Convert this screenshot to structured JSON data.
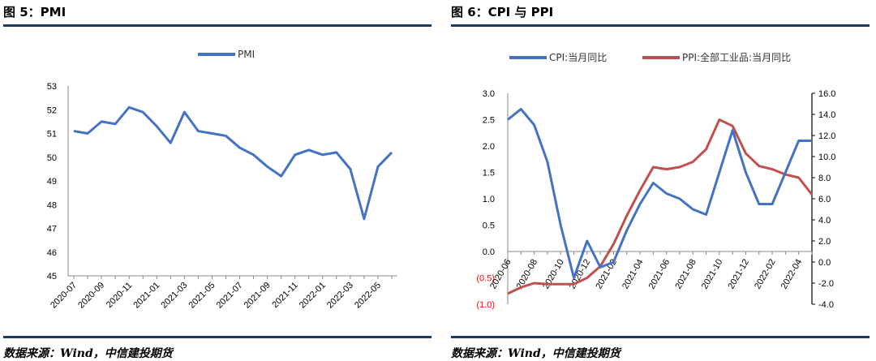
{
  "figures": {
    "left": {
      "title": "图 5：PMI",
      "source": "数据来源：Wind，中信建投期货"
    },
    "right": {
      "title": "图 6：CPI 与 PPI",
      "source": "数据来源：Wind，中信建投期货"
    }
  },
  "colors": {
    "blue": "#4472c4",
    "red": "#c0504d",
    "rule": "#1f3a66",
    "negative_label": "#ff0000"
  },
  "chart_data": [
    {
      "type": "line",
      "title": "",
      "xlabel": "",
      "ylabel": "",
      "ylim": [
        45,
        53
      ],
      "y_ticks": [
        "45",
        "46",
        "47",
        "48",
        "49",
        "50",
        "51",
        "52",
        "53"
      ],
      "x_tick_labels": [
        "2020-07",
        "2020-09",
        "2020-11",
        "2021-01",
        "2021-03",
        "2021-05",
        "2021-07",
        "2021-09",
        "2021-11",
        "2022-01",
        "2022-03",
        "2022-05"
      ],
      "x": [
        "2020-07",
        "2020-08",
        "2020-09",
        "2020-10",
        "2020-11",
        "2020-12",
        "2021-01",
        "2021-02",
        "2021-03",
        "2021-04",
        "2021-05",
        "2021-06",
        "2021-07",
        "2021-08",
        "2021-09",
        "2021-10",
        "2021-11",
        "2021-12",
        "2022-01",
        "2022-02",
        "2022-03",
        "2022-04",
        "2022-05",
        "2022-06"
      ],
      "series": [
        {
          "name": "PMI",
          "color": "#4472c4",
          "values": [
            51.1,
            51.0,
            51.5,
            51.4,
            52.1,
            51.9,
            51.3,
            50.6,
            51.9,
            51.1,
            51.0,
            50.9,
            50.4,
            50.1,
            49.6,
            49.2,
            50.1,
            50.3,
            50.1,
            50.2,
            49.5,
            47.4,
            49.6,
            50.2
          ]
        }
      ],
      "legend_position": "top-center",
      "grid": false
    },
    {
      "type": "line",
      "title": "",
      "xlabel": "",
      "ylabel": "",
      "ylim": [
        -1.0,
        3.0
      ],
      "y2lim": [
        -4.0,
        16.0
      ],
      "y_ticks": [
        "3.0",
        "2.5",
        "2.0",
        "1.5",
        "1.0",
        "0.5",
        "0.0",
        "(0.5)",
        "(1.0)"
      ],
      "y2_ticks": [
        "16.0",
        "14.0",
        "12.0",
        "10.0",
        "8.0",
        "6.0",
        "4.0",
        "2.0",
        "0.0",
        "-2.0",
        "-4.0"
      ],
      "x_tick_labels": [
        "2020-06",
        "2020-08",
        "2020-10",
        "2020-12",
        "2021-02",
        "2021-04",
        "2021-06",
        "2021-08",
        "2021-10",
        "2021-12",
        "2022-02",
        "2022-04"
      ],
      "x": [
        "2020-06",
        "2020-07",
        "2020-08",
        "2020-09",
        "2020-10",
        "2020-11",
        "2020-12",
        "2021-01",
        "2021-02",
        "2021-03",
        "2021-04",
        "2021-05",
        "2021-06",
        "2021-07",
        "2021-08",
        "2021-09",
        "2021-10",
        "2021-11",
        "2021-12",
        "2022-01",
        "2022-02",
        "2022-03",
        "2022-04",
        "2022-05"
      ],
      "series": [
        {
          "name": "CPI:当月同比",
          "axis": "left",
          "color": "#4472c4",
          "values": [
            2.5,
            2.7,
            2.4,
            1.7,
            0.5,
            -0.5,
            0.2,
            -0.3,
            -0.2,
            0.4,
            0.9,
            1.3,
            1.1,
            1.0,
            0.8,
            0.7,
            1.5,
            2.3,
            1.5,
            0.9,
            0.9,
            1.5,
            2.1,
            2.1
          ]
        },
        {
          "name": "PPI:全部工业品:当月同比",
          "axis": "right",
          "color": "#c0504d",
          "values": [
            -3.0,
            -2.4,
            -2.0,
            -2.1,
            -2.1,
            -2.1,
            -1.5,
            -0.4,
            1.7,
            4.4,
            6.8,
            9.0,
            8.8,
            9.0,
            9.5,
            10.7,
            13.5,
            12.9,
            10.3,
            9.1,
            8.8,
            8.3,
            8.0,
            6.4
          ]
        }
      ],
      "legend_position": "top",
      "grid": false
    }
  ]
}
